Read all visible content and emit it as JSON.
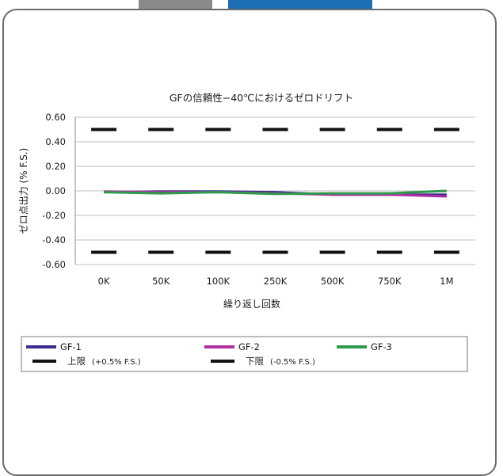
{
  "tabs": [
    {
      "color": "#8a8a8a"
    },
    {
      "color": "#1d6fb4"
    }
  ],
  "chart_data": {
    "type": "line",
    "title": "GFの信頼性−40℃におけるゼロドリフト",
    "xlabel": "繰り返し回数",
    "ylabel": "ゼロ点出力 (% F.S.)",
    "categories": [
      "0K",
      "50K",
      "100K",
      "250K",
      "500K",
      "750K",
      "1M"
    ],
    "ylim": [
      -0.6,
      0.6
    ],
    "yticks": [
      "0.60",
      "0.40",
      "0.20",
      "0.00",
      "-0.20",
      "-0.40",
      "-0.60"
    ],
    "grid": true,
    "legend_position": "bottom",
    "series": [
      {
        "name": "GF-1",
        "color": "#3b2e8f",
        "style": "solid",
        "values": [
          -0.01,
          -0.005,
          -0.005,
          -0.01,
          -0.03,
          -0.03,
          -0.03
        ]
      },
      {
        "name": "GF-2",
        "color": "#b02fa0",
        "style": "solid",
        "values": [
          -0.005,
          -0.01,
          -0.01,
          -0.02,
          -0.03,
          -0.03,
          -0.045
        ]
      },
      {
        "name": "GF-3",
        "color": "#2e9a4c",
        "style": "solid",
        "values": [
          -0.01,
          -0.02,
          -0.01,
          -0.025,
          -0.02,
          -0.02,
          0.0
        ]
      },
      {
        "name": "上限",
        "name_note": "(+0.5% F.S.)",
        "color": "#111111",
        "style": "dashed",
        "values": [
          0.5,
          0.5,
          0.5,
          0.5,
          0.5,
          0.5,
          0.5
        ]
      },
      {
        "name": "下限",
        "name_note": "(-0.5% F.S.)",
        "color": "#111111",
        "style": "dashed",
        "values": [
          -0.5,
          -0.5,
          -0.5,
          -0.5,
          -0.5,
          -0.5,
          -0.5
        ]
      }
    ]
  }
}
